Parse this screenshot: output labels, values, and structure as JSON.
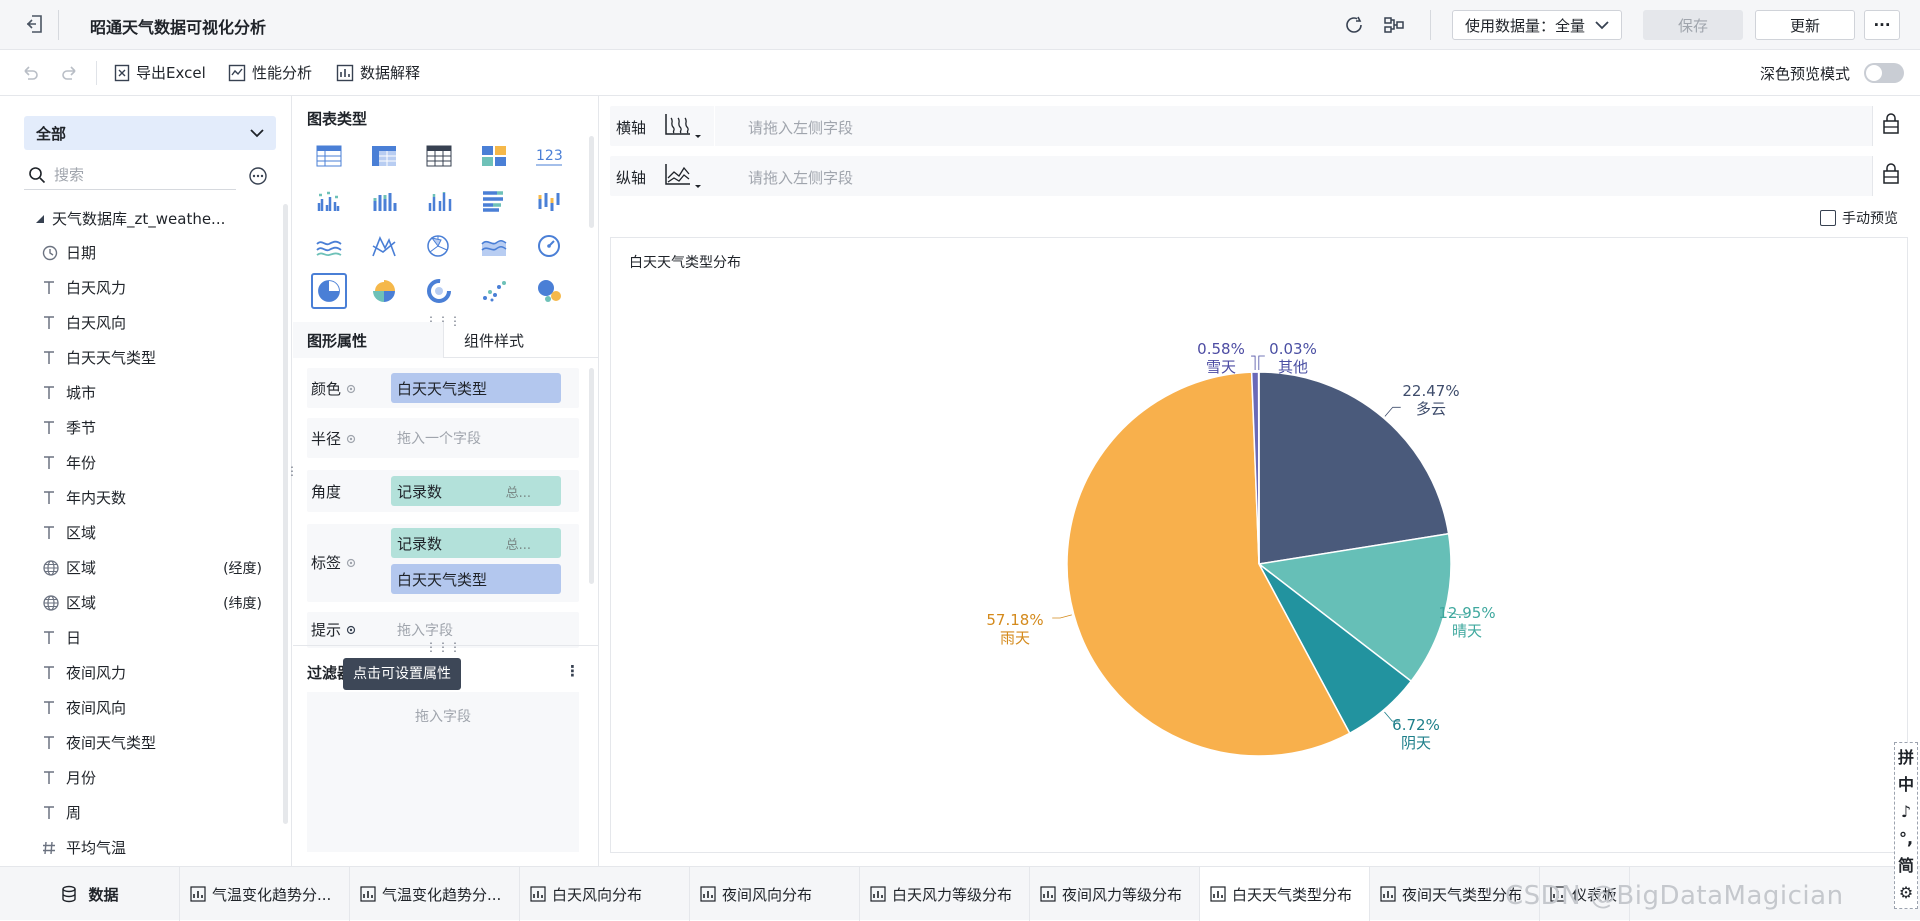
{
  "app": {
    "title": "昭通天气数据可视化分析"
  },
  "topbar": {
    "data_volume_label": "使用数据量：全量",
    "save_label": "保存",
    "update_label": "更新",
    "more_label": "···"
  },
  "toolbar": {
    "export_label": "导出Excel",
    "perf_label": "性能分析",
    "explain_label": "数据解释",
    "dark_preview_label": "深色预览模式"
  },
  "left": {
    "scope_label": "全部",
    "search_placeholder": "搜索",
    "dataset_name": "天气数据库_zt_weathe...",
    "fields": [
      {
        "icon": "clock",
        "label": "日期",
        "suffix": ""
      },
      {
        "icon": "text",
        "label": "白天风力",
        "suffix": ""
      },
      {
        "icon": "text",
        "label": "白天风向",
        "suffix": ""
      },
      {
        "icon": "text",
        "label": "白天天气类型",
        "suffix": ""
      },
      {
        "icon": "text",
        "label": "城市",
        "suffix": ""
      },
      {
        "icon": "text",
        "label": "季节",
        "suffix": ""
      },
      {
        "icon": "text",
        "label": "年份",
        "suffix": ""
      },
      {
        "icon": "text",
        "label": "年内天数",
        "suffix": ""
      },
      {
        "icon": "text",
        "label": "区域",
        "suffix": ""
      },
      {
        "icon": "globe",
        "label": "区域",
        "suffix": "(经度)"
      },
      {
        "icon": "globe",
        "label": "区域",
        "suffix": "(纬度)"
      },
      {
        "icon": "text",
        "label": "日",
        "suffix": ""
      },
      {
        "icon": "text",
        "label": "夜间风力",
        "suffix": ""
      },
      {
        "icon": "text",
        "label": "夜间风向",
        "suffix": ""
      },
      {
        "icon": "text",
        "label": "夜间天气类型",
        "suffix": ""
      },
      {
        "icon": "text",
        "label": "月份",
        "suffix": ""
      },
      {
        "icon": "text",
        "label": "周",
        "suffix": ""
      },
      {
        "icon": "hash",
        "label": "平均气温",
        "suffix": ""
      }
    ]
  },
  "mid": {
    "chart_type_title": "图表类型",
    "tab_props": "图形属性",
    "tab_style": "组件样式",
    "color_label": "颜色",
    "color_field": "白天天气类型",
    "radius_label": "半径",
    "radius_placeholder": "拖入一个字段",
    "angle_label": "角度",
    "angle_field": "记录数",
    "angle_agg": "总...",
    "label_label": "标签",
    "label_field1": "记录数",
    "label_agg": "总...",
    "label_field2": "白天天气类型",
    "tip_label": "提示",
    "tip_placeholder": "拖入字段",
    "filter_title": "过滤器",
    "filter_placeholder": "拖入字段",
    "tooltip": "点击可设置属性"
  },
  "right": {
    "x_axis_label": "横轴",
    "x_axis_placeholder": "请拖入左侧字段",
    "y_axis_label": "纵轴",
    "y_axis_placeholder": "请拖入左侧字段",
    "manual_preview_label": "手动预览"
  },
  "chart_data": {
    "type": "pie",
    "title": "白天天气类型分布",
    "slices": [
      {
        "name": "多云",
        "percent": 22.47,
        "label": "22.47%",
        "color": "#4a5a7b"
      },
      {
        "name": "晴天",
        "percent": 12.95,
        "label": "12.95%",
        "color": "#66bfb7"
      },
      {
        "name": "阴天",
        "percent": 6.72,
        "label": "6.72%",
        "color": "#22939f"
      },
      {
        "name": "雨天",
        "percent": 57.18,
        "label": "57.18%",
        "color": "#f8b04c"
      },
      {
        "name": "雪天",
        "percent": 0.58,
        "label": "0.58%",
        "color": "#6a69b8"
      },
      {
        "name": "其他",
        "percent": 0.03,
        "label": "0.03%",
        "color": "#4a4fa3"
      }
    ]
  },
  "tabs": {
    "data_label": "数据",
    "items": [
      {
        "label": "气温变化趋势分..."
      },
      {
        "label": "气温变化趋势分..."
      },
      {
        "label": "白天风向分布"
      },
      {
        "label": "夜间风向分布"
      },
      {
        "label": "白天风力等级分布"
      },
      {
        "label": "夜间风力等级分布"
      },
      {
        "label": "白天天气类型分布"
      },
      {
        "label": "夜间天气类型分布"
      },
      {
        "label": "仪表板"
      }
    ],
    "watermark": "CSDN @BigDataMagician"
  },
  "ime": {
    "chars": [
      "拼",
      "中",
      "♪",
      "°,",
      "简",
      "⚙"
    ]
  }
}
